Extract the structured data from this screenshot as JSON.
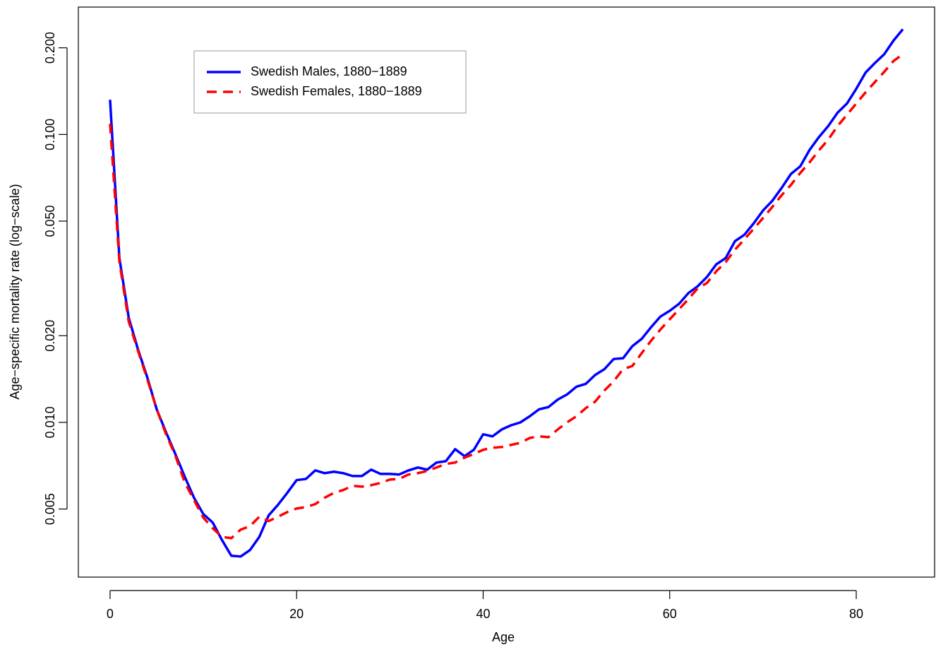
{
  "chart_data": {
    "type": "line",
    "xlabel": "Age",
    "ylabel": "Age−specific mortality rate (log−scale)",
    "log_y": true,
    "legend": "top-left",
    "x": [
      0,
      1,
      2,
      3,
      4,
      5,
      6,
      7,
      8,
      9,
      10,
      11,
      12,
      13,
      14,
      15,
      16,
      17,
      18,
      19,
      20,
      21,
      22,
      23,
      24,
      25,
      26,
      27,
      28,
      29,
      30,
      31,
      32,
      33,
      34,
      35,
      36,
      37,
      38,
      39,
      40,
      41,
      42,
      43,
      44,
      45,
      46,
      47,
      48,
      49,
      50,
      51,
      52,
      53,
      54,
      55,
      56,
      57,
      58,
      59,
      60,
      61,
      62,
      63,
      64,
      65,
      66,
      67,
      68,
      69,
      70,
      71,
      72,
      73,
      74,
      75,
      76,
      77,
      78,
      79,
      80,
      81,
      82,
      83,
      84,
      85
    ],
    "series": [
      {
        "name": "Swedish Males, 1880−1889",
        "color": "#0000ff",
        "line_style": "solid",
        "values": [
          0.132,
          0.0372,
          0.0231,
          0.0179,
          0.0143,
          0.0111,
          0.00924,
          0.00776,
          0.00648,
          0.00547,
          0.0048,
          0.00449,
          0.0039,
          0.00344,
          0.00342,
          0.0036,
          0.004,
          0.00475,
          0.00517,
          0.00569,
          0.0063,
          0.00636,
          0.00681,
          0.00666,
          0.00674,
          0.00666,
          0.00651,
          0.00651,
          0.00685,
          0.00662,
          0.00662,
          0.00659,
          0.00681,
          0.00697,
          0.00685,
          0.00725,
          0.00733,
          0.00807,
          0.00763,
          0.00803,
          0.00909,
          0.00894,
          0.00945,
          0.00977,
          0.01,
          0.0105,
          0.0111,
          0.0113,
          0.012,
          0.0125,
          0.0133,
          0.0136,
          0.0146,
          0.0153,
          0.0166,
          0.0167,
          0.0184,
          0.0195,
          0.0214,
          0.0233,
          0.0244,
          0.0258,
          0.0281,
          0.0297,
          0.032,
          0.0354,
          0.0372,
          0.0426,
          0.0448,
          0.0491,
          0.0544,
          0.0588,
          0.0652,
          0.0729,
          0.0775,
          0.0884,
          0.0979,
          0.107,
          0.119,
          0.128,
          0.144,
          0.164,
          0.177,
          0.19,
          0.212,
          0.232
        ]
      },
      {
        "name": "Swedish Females, 1880−1889",
        "color": "#ff0000",
        "line_style": "dashed",
        "values": [
          0.109,
          0.0362,
          0.0224,
          0.0177,
          0.0141,
          0.0111,
          0.0091,
          0.00767,
          0.00619,
          0.00537,
          0.00467,
          0.00429,
          0.004,
          0.00396,
          0.00424,
          0.00436,
          0.0047,
          0.00454,
          0.0047,
          0.00488,
          0.00502,
          0.00508,
          0.0052,
          0.00547,
          0.00569,
          0.00582,
          0.00602,
          0.00598,
          0.00605,
          0.00616,
          0.00633,
          0.00636,
          0.00659,
          0.00666,
          0.00678,
          0.00697,
          0.00717,
          0.00725,
          0.00754,
          0.00776,
          0.00803,
          0.00816,
          0.00821,
          0.00835,
          0.00849,
          0.00883,
          0.00894,
          0.00888,
          0.00945,
          0.01,
          0.0105,
          0.0112,
          0.0118,
          0.0129,
          0.0139,
          0.0153,
          0.0157,
          0.0174,
          0.0192,
          0.021,
          0.0228,
          0.0247,
          0.0268,
          0.0292,
          0.0305,
          0.0335,
          0.036,
          0.0398,
          0.0432,
          0.047,
          0.0512,
          0.056,
          0.0615,
          0.0668,
          0.0735,
          0.08,
          0.088,
          0.096,
          0.107,
          0.117,
          0.128,
          0.14,
          0.152,
          0.165,
          0.18,
          0.19
        ]
      }
    ],
    "xlim": [
      -3.4,
      88.4
    ],
    "ylim": [
      0.0029,
      0.277
    ],
    "xticks": [
      0,
      20,
      40,
      60,
      80
    ],
    "yticks": [
      {
        "value": 0.005,
        "label": "0.005"
      },
      {
        "value": 0.01,
        "label": "0.010"
      },
      {
        "value": 0.02,
        "label": "0.020"
      },
      {
        "value": 0.05,
        "label": "0.050"
      },
      {
        "value": 0.1,
        "label": "0.100"
      },
      {
        "value": 0.2,
        "label": "0.200"
      }
    ]
  }
}
